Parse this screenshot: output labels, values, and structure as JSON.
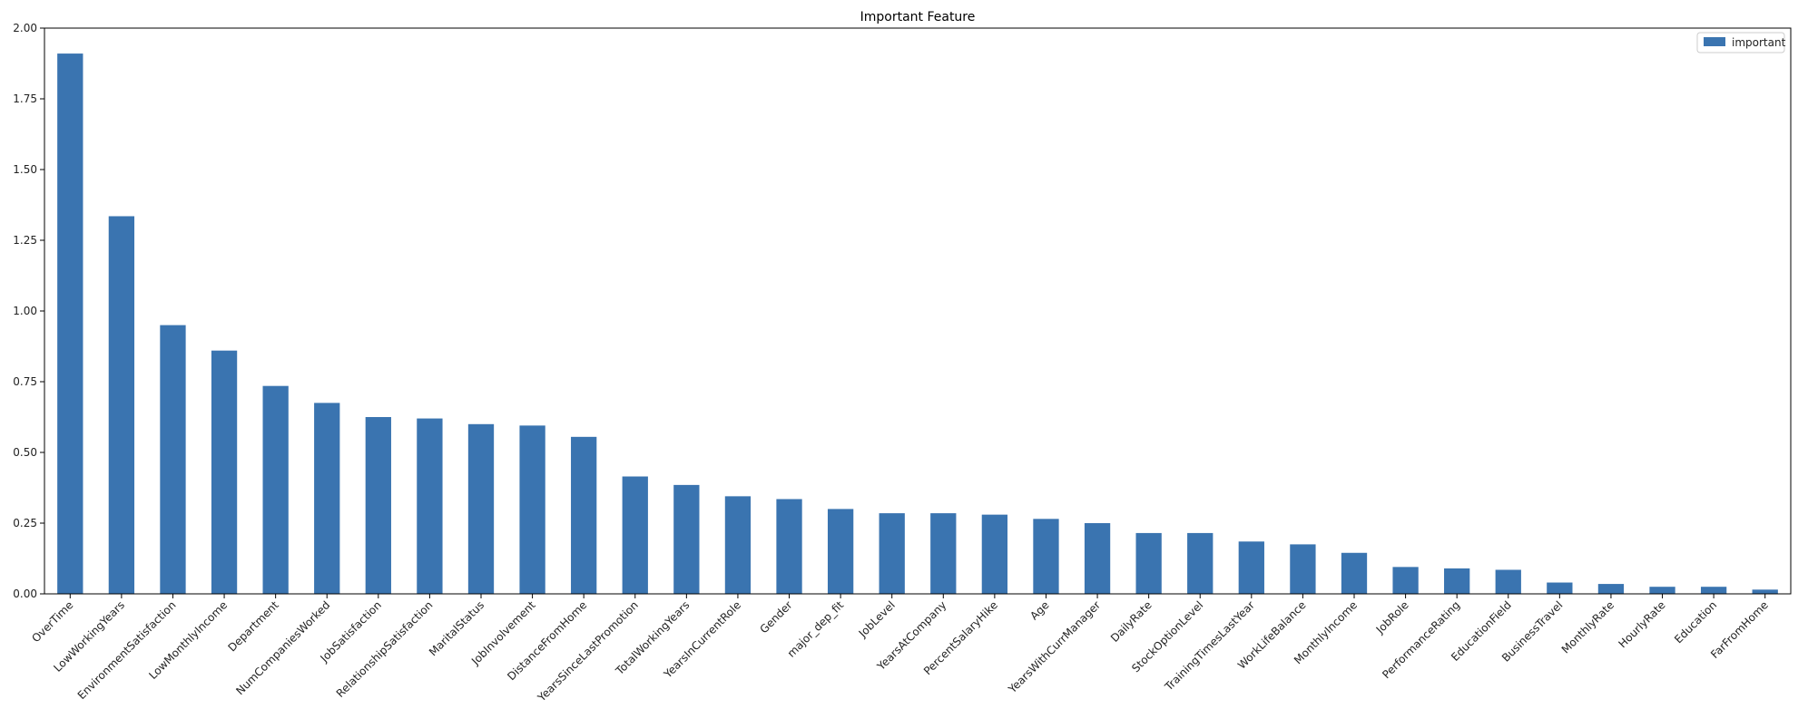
{
  "chart_data": {
    "type": "bar",
    "title": "Important Feature",
    "xlabel": "",
    "ylabel": "",
    "ylim": [
      0,
      2.0
    ],
    "yticks": [
      "0.00",
      "0.25",
      "0.50",
      "0.75",
      "1.00",
      "1.25",
      "1.50",
      "1.75",
      "2.00"
    ],
    "grid": false,
    "legend_position": "top-right",
    "bar_color": "#3a74b0",
    "categories": [
      "OverTime",
      "LowWorkingYears",
      "EnvironmentSatisfaction",
      "LowMonthlyIncome",
      "Department",
      "NumCompaniesWorked",
      "JobSatisfaction",
      "RelationshipSatisfaction",
      "MaritalStatus",
      "JobInvolvement",
      "DistanceFromHome",
      "YearsSinceLastPromotion",
      "TotalWorkingYears",
      "YearsInCurrentRole",
      "Gender",
      "major_dep_fit",
      "JobLevel",
      "YearsAtCompany",
      "PercentSalaryHike",
      "Age",
      "YearsWithCurrManager",
      "DailyRate",
      "StockOptionLevel",
      "TrainingTimesLastYear",
      "WorkLifeBalance",
      "MonthlyIncome",
      "JobRole",
      "PerformanceRating",
      "EducationField",
      "BusinessTravel",
      "MonthlyRate",
      "HourlyRate",
      "Education",
      "FarFromHome"
    ],
    "series": [
      {
        "name": "important",
        "values": [
          1.91,
          1.335,
          0.95,
          0.86,
          0.735,
          0.675,
          0.625,
          0.62,
          0.6,
          0.595,
          0.555,
          0.415,
          0.385,
          0.345,
          0.335,
          0.3,
          0.285,
          0.285,
          0.28,
          0.265,
          0.25,
          0.215,
          0.215,
          0.185,
          0.175,
          0.145,
          0.095,
          0.09,
          0.085,
          0.04,
          0.035,
          0.025,
          0.025,
          0.015
        ]
      }
    ]
  }
}
